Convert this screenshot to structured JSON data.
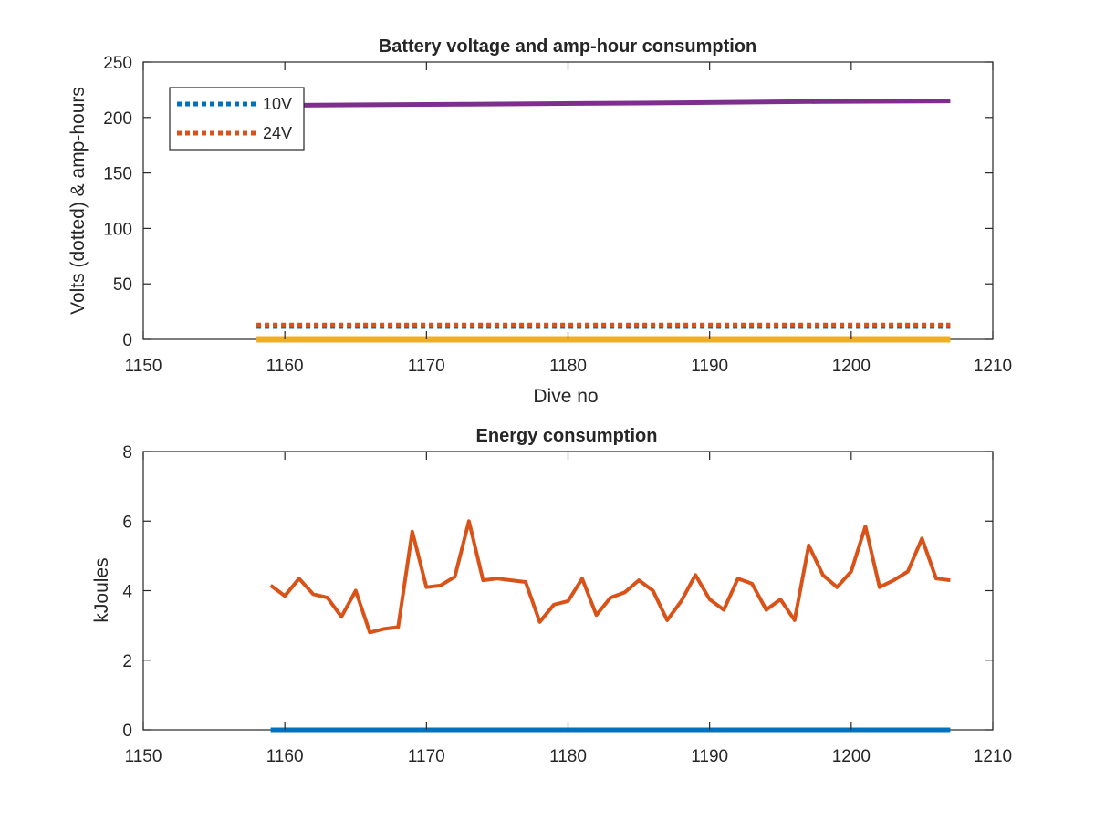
{
  "chart_data": [
    {
      "type": "line",
      "title": "Battery voltage and amp-hour consumption",
      "xlabel": "Dive no",
      "ylabel": "Volts (dotted) & amp-hours",
      "xlim": [
        1150,
        1210
      ],
      "ylim": [
        0,
        250
      ],
      "xticks": [
        1150,
        1160,
        1170,
        1180,
        1190,
        1200,
        1210
      ],
      "yticks": [
        0,
        50,
        100,
        150,
        200,
        250
      ],
      "legend_position": "top-left",
      "series": [
        {
          "name": "10V",
          "style": "dotted",
          "color": "#0072BD",
          "x": [
            1158,
            1207
          ],
          "y": [
            11.5,
            11.5
          ]
        },
        {
          "name": "24V",
          "style": "dotted",
          "color": "#D95319",
          "x": [
            1158,
            1207
          ],
          "y": [
            13,
            13
          ]
        },
        {
          "style": "solid",
          "color": "#EDB120",
          "x": [
            1158,
            1207
          ],
          "y": [
            0,
            0
          ]
        },
        {
          "style": "solid",
          "color": "#7E2F8E",
          "x": [
            1161,
            1173,
            1185,
            1198,
            1207
          ],
          "y": [
            211,
            212,
            213,
            214.5,
            215
          ]
        }
      ]
    },
    {
      "type": "line",
      "title": "Energy consumption",
      "xlabel": "",
      "ylabel": "kJoules",
      "xlim": [
        1150,
        1210
      ],
      "ylim": [
        0,
        8
      ],
      "xticks": [
        1150,
        1160,
        1170,
        1180,
        1190,
        1200,
        1210
      ],
      "yticks": [
        0,
        2,
        4,
        6,
        8
      ],
      "series": [
        {
          "style": "solid",
          "color": "#0072BD",
          "x": [
            1159,
            1207
          ],
          "y": [
            0,
            0
          ]
        },
        {
          "style": "solid",
          "color": "#D95319",
          "x": [
            1159,
            1160,
            1161,
            1162,
            1163,
            1164,
            1165,
            1166,
            1167,
            1168,
            1169,
            1170,
            1171,
            1172,
            1173,
            1174,
            1175,
            1176,
            1177,
            1178,
            1179,
            1180,
            1181,
            1182,
            1183,
            1184,
            1185,
            1186,
            1187,
            1188,
            1189,
            1190,
            1191,
            1192,
            1193,
            1194,
            1195,
            1196,
            1197,
            1198,
            1199,
            1200,
            1201,
            1202,
            1203,
            1204,
            1205,
            1206,
            1207
          ],
          "y": [
            4.15,
            3.85,
            4.35,
            3.9,
            3.8,
            3.25,
            4.0,
            2.8,
            2.9,
            2.95,
            5.7,
            4.1,
            4.15,
            4.4,
            6.0,
            4.3,
            4.35,
            4.3,
            4.25,
            3.1,
            3.6,
            3.7,
            4.35,
            3.3,
            3.8,
            3.95,
            4.3,
            4.0,
            3.15,
            3.7,
            4.45,
            3.75,
            3.45,
            4.35,
            4.2,
            3.45,
            3.75,
            3.15,
            5.3,
            4.45,
            4.1,
            4.55,
            5.85,
            4.1,
            4.3,
            4.55,
            5.5,
            4.35,
            4.3
          ]
        }
      ]
    }
  ]
}
